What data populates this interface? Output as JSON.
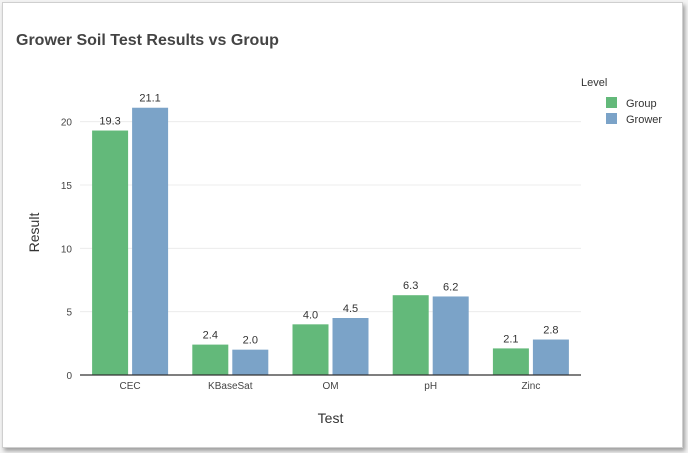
{
  "chart_data": {
    "type": "bar",
    "title": "Grower Soil Test Results vs Group",
    "xlabel": "Test",
    "ylabel": "Result",
    "categories": [
      "CEC",
      "KBaseSat",
      "OM",
      "pH",
      "Zinc"
    ],
    "series": [
      {
        "name": "Group",
        "values": [
          19.3,
          2.4,
          4.0,
          6.3,
          2.1
        ],
        "labels": [
          "19.3",
          "2.4",
          "4.0",
          "6.3",
          "2.1"
        ],
        "color": "#63b97a"
      },
      {
        "name": "Grower",
        "values": [
          21.1,
          2.0,
          4.5,
          6.2,
          2.8
        ],
        "labels": [
          "21.1",
          "2.0",
          "4.5",
          "6.2",
          "2.8"
        ],
        "color": "#7ba3c8"
      }
    ],
    "ylim": [
      0,
      22.5
    ],
    "yticks": [
      0,
      5,
      10,
      15,
      20
    ],
    "legend_title": "Level",
    "legend_position": "top-right",
    "grid": true
  }
}
